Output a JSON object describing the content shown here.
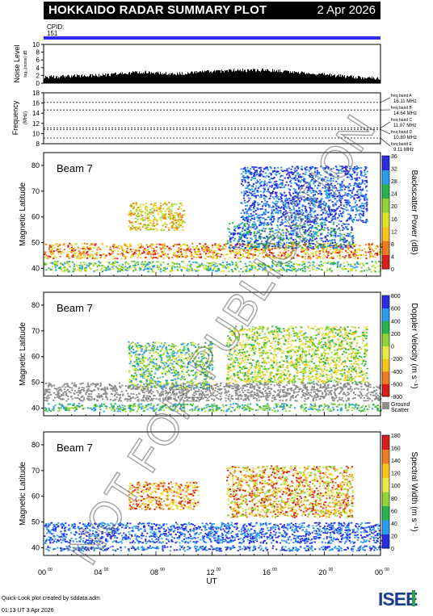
{
  "header": {
    "title": "HOKKAIDO RADAR SUMMARY PLOT",
    "date": "2 Apr 2026",
    "cpid_label": "CPID:",
    "cpid_value": "151"
  },
  "footer": {
    "line1": "Quick-Look plot created by sddata.adm",
    "line2": "01:13 UT  3 Apr 2026"
  },
  "logo": {
    "text": "ISEE",
    "colors": [
      "#1a3c8c",
      "#2fa24a"
    ]
  },
  "watermark": "NOT FOR PUBLICATION",
  "colors": {
    "cpid_bar": "#2b2bff",
    "ground_scatter": "#8c8c8c",
    "power_scale": [
      "#d61c1c",
      "#f07a1f",
      "#f6c523",
      "#d8e22a",
      "#8ed630",
      "#27b34a",
      "#2a9cf0",
      "#2a2ce0"
    ],
    "velocity_scale": [
      "#d61c1c",
      "#f07a1f",
      "#f6c523",
      "#e8e84a",
      "#8ed630",
      "#27b34a",
      "#2a9cf0",
      "#2a2ce0"
    ],
    "width_scale": [
      "#2a2ce0",
      "#2a9cf0",
      "#27b34a",
      "#8ed630",
      "#e8e84a",
      "#f6c523",
      "#f07a1f",
      "#d61c1c"
    ]
  },
  "chart_data": [
    {
      "id": "noise",
      "type": "area",
      "ylabel": "Noise Level",
      "ylabel_sub": "log₁₀(noise) dB",
      "ylim": [
        0,
        10
      ],
      "yticks": [
        "0",
        "2",
        "4",
        "6",
        "8",
        "10"
      ],
      "x_hours": [
        0,
        1,
        2,
        3,
        4,
        5,
        6,
        7,
        8,
        9,
        10,
        11,
        12,
        13,
        14,
        15,
        16,
        17,
        18,
        19,
        20,
        21,
        22,
        23,
        24
      ],
      "values": [
        1.6,
        1.7,
        1.8,
        1.9,
        2.0,
        2.3,
        2.6,
        2.9,
        2.6,
        2.4,
        2.5,
        2.8,
        3.0,
        3.2,
        3.3,
        3.4,
        3.3,
        3.1,
        2.8,
        2.5,
        2.2,
        1.9,
        1.6,
        1.4,
        1.3
      ]
    },
    {
      "id": "frequency",
      "type": "line",
      "ylabel": "Frequency",
      "ylabel_sub": "(MHz)",
      "ylim": [
        8,
        18
      ],
      "yticks": [
        "8",
        "10",
        "12",
        "14",
        "16",
        "18"
      ],
      "bands": [
        {
          "label": "freq band A",
          "value": "16.11 MHz",
          "mhz": 16.11
        },
        {
          "label": "freq band B",
          "value": "14.64 MHz",
          "mhz": 14.64
        },
        {
          "label": "freq band C",
          "value": "11.07 MHz",
          "mhz": 11.07
        },
        {
          "label": "freq band D",
          "value": "10.80 MHz",
          "mhz": 10.8
        },
        {
          "label": "freq band E",
          "value": "9.11 MHz",
          "mhz": 9.11
        }
      ]
    },
    {
      "id": "power",
      "type": "heatmap",
      "beam": "Beam  7",
      "ylabel": "Magnetic Latitude",
      "ylim": [
        37,
        85
      ],
      "yticks": [
        "40",
        "50",
        "60",
        "70",
        "80"
      ],
      "colorbar_label": "Backscatter Power (dB)",
      "colorbar_ticks": [
        "0",
        "4",
        "8",
        "12",
        "16",
        "20",
        "24",
        "28",
        "32",
        "36"
      ],
      "echo_bands": [
        {
          "x0": 0,
          "x1": 24,
          "lat0": 44,
          "lat1": 50,
          "c": [
            0,
            1,
            2,
            3
          ]
        },
        {
          "x0": 6,
          "x1": 10,
          "lat0": 55,
          "lat1": 66,
          "c": [
            1,
            2,
            3,
            4
          ]
        },
        {
          "x0": 13,
          "x1": 22,
          "lat0": 48,
          "lat1": 58,
          "c": [
            5,
            6,
            7
          ]
        },
        {
          "x0": 14,
          "x1": 23,
          "lat0": 58,
          "lat1": 80,
          "c": [
            6,
            7
          ]
        },
        {
          "x0": 0,
          "x1": 24,
          "lat0": 39,
          "lat1": 43,
          "c": [
            3,
            4,
            5,
            6
          ]
        }
      ]
    },
    {
      "id": "velocity",
      "type": "heatmap",
      "beam": "Beam  7",
      "ylabel": "Magnetic Latitude",
      "ylim": [
        37,
        85
      ],
      "yticks": [
        "40",
        "50",
        "60",
        "70",
        "80"
      ],
      "colorbar_label": "Doppler Velocity (m s⁻¹)",
      "colorbar_ticks": [
        "-800",
        "-600",
        "-400",
        "-200",
        "0",
        "200",
        "400",
        "600",
        "800"
      ],
      "colorbar_extra": "Ground Scatter",
      "echo_bands": [
        {
          "x0": 0,
          "x1": 24,
          "lat0": 43,
          "lat1": 50,
          "c": [
            "gs"
          ]
        },
        {
          "x0": 6,
          "x1": 12,
          "lat0": 48,
          "lat1": 66,
          "c": [
            3,
            4,
            5,
            6
          ]
        },
        {
          "x0": 13,
          "x1": 23,
          "lat0": 50,
          "lat1": 72,
          "c": [
            2,
            3,
            4,
            5
          ]
        },
        {
          "x0": 0,
          "x1": 24,
          "lat0": 39,
          "lat1": 42,
          "c": [
            4,
            5,
            6
          ]
        }
      ]
    },
    {
      "id": "width",
      "type": "heatmap",
      "beam": "Beam  7",
      "ylabel": "Magnetic Latitude",
      "ylim": [
        37,
        85
      ],
      "yticks": [
        "40",
        "50",
        "60",
        "70",
        "80"
      ],
      "colorbar_label": "Spectral Width (m s⁻¹)",
      "colorbar_ticks": [
        "0",
        "20",
        "40",
        "60",
        "80",
        "100",
        "120",
        "140",
        "160",
        "180"
      ],
      "xlabel": "UT",
      "xticks": [
        "00",
        "04",
        "08",
        "12",
        "16",
        "20",
        "00"
      ],
      "xtick_sup": "00",
      "echo_bands": [
        {
          "x0": 0,
          "x1": 24,
          "lat0": 42,
          "lat1": 50,
          "c": [
            0,
            1
          ]
        },
        {
          "x0": 6,
          "x1": 11,
          "lat0": 55,
          "lat1": 66,
          "c": [
            4,
            5,
            6,
            7
          ]
        },
        {
          "x0": 13,
          "x1": 22,
          "lat0": 52,
          "lat1": 72,
          "c": [
            3,
            4,
            5,
            6,
            7
          ]
        },
        {
          "x0": 0,
          "x1": 24,
          "lat0": 39,
          "lat1": 41,
          "c": [
            0,
            1
          ]
        }
      ]
    }
  ]
}
